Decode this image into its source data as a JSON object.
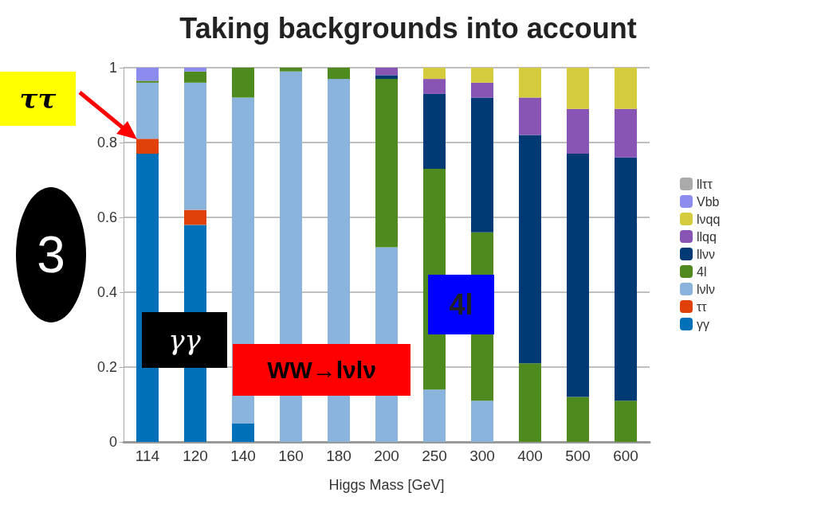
{
  "chart_data": {
    "type": "bar",
    "title": "Taking backgrounds into account",
    "xlabel": "Higgs Mass [GeV]",
    "stacked": true,
    "grid": "y",
    "legend": "right",
    "ylim": [
      0,
      1
    ],
    "yticks": [
      0,
      0.2,
      0.4,
      0.6,
      0.8,
      1
    ],
    "categories": [
      "114",
      "120",
      "140",
      "160",
      "180",
      "200",
      "250",
      "300",
      "400",
      "500",
      "600"
    ],
    "series": [
      {
        "name": "γγ",
        "color": "#0070b8",
        "values": [
          0.77,
          0.58,
          0.05,
          0,
          0,
          0,
          0,
          0,
          0,
          0,
          0
        ]
      },
      {
        "name": "ττ",
        "color": "#e0400a",
        "values": [
          0.04,
          0.04,
          0,
          0,
          0,
          0,
          0,
          0,
          0,
          0,
          0
        ]
      },
      {
        "name": "lνlν",
        "color": "#8ab4dc",
        "values": [
          0.15,
          0.34,
          0.87,
          0.99,
          0.97,
          0.52,
          0.14,
          0.11,
          0,
          0,
          0
        ]
      },
      {
        "name": "4l",
        "color": "#4e8a1e",
        "values": [
          0.005,
          0.03,
          0.08,
          0.01,
          0.03,
          0.45,
          0.59,
          0.45,
          0.21,
          0.12,
          0.11
        ]
      },
      {
        "name": "llνν",
        "color": "#003a75",
        "values": [
          0,
          0,
          0,
          0,
          0,
          0.01,
          0.2,
          0.36,
          0.61,
          0.65,
          0.65
        ]
      },
      {
        "name": "llqq",
        "color": "#8855b5",
        "values": [
          0,
          0,
          0,
          0,
          0,
          0.02,
          0.04,
          0.04,
          0.1,
          0.12,
          0.13
        ]
      },
      {
        "name": "lνqq",
        "color": "#d4cc3c",
        "values": [
          0,
          0,
          0,
          0,
          0,
          0,
          0.03,
          0.04,
          0.08,
          0.11,
          0.11
        ]
      },
      {
        "name": "Vbb",
        "color": "#8c8cee",
        "values": [
          0.035,
          0.01,
          0,
          0,
          0,
          0,
          0,
          0,
          0,
          0,
          0
        ]
      },
      {
        "name": "llττ",
        "color": "#aaaaaa",
        "values": [
          0,
          0,
          0,
          0,
          0,
          0,
          0,
          0,
          0,
          0,
          0
        ]
      }
    ],
    "annotations": [
      "ττ",
      "3",
      "γγ",
      "WW→lνlν",
      "4l"
    ]
  }
}
